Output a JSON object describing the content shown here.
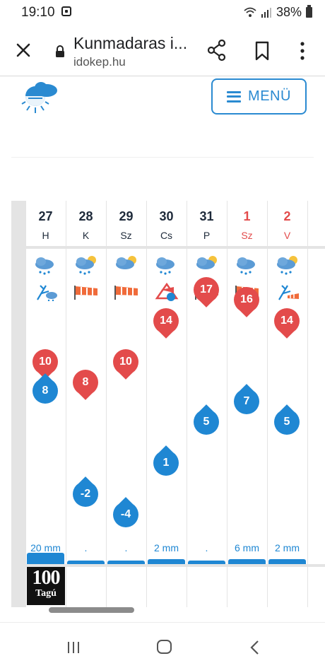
{
  "status_bar": {
    "time": "19:10",
    "battery": "38%",
    "icons": [
      "notification-icon",
      "wifi-icon",
      "signal-icon",
      "battery-icon"
    ]
  },
  "browser": {
    "title": "Kunmadaras i...",
    "url": "idokep.hu",
    "icons": [
      "close-icon",
      "lock-icon",
      "share-icon",
      "bookmark-icon",
      "more-icon"
    ]
  },
  "header": {
    "menu_label": "MENÜ",
    "logo_icon": "weather-logo-icon"
  },
  "forecast": {
    "days": [
      {
        "date": "27",
        "day": "H",
        "weekend": false,
        "max": "10",
        "min": "8",
        "precip": "20 mm",
        "weather_icon": "cloud-rain-icon",
        "wind_icon": "branch-wind-icon"
      },
      {
        "date": "28",
        "day": "K",
        "weekend": false,
        "max": "8",
        "min": "-2",
        "precip": ".",
        "weather_icon": "partly-cloudy-rain-icon",
        "wind_icon": "windsock-icon"
      },
      {
        "date": "29",
        "day": "Sz",
        "weekend": false,
        "max": "10",
        "min": "-4",
        "precip": ".",
        "weather_icon": "partly-sunny-icon",
        "wind_icon": "windsock-icon"
      },
      {
        "date": "30",
        "day": "Cs",
        "weekend": false,
        "max": "14",
        "min": "1",
        "precip": "2 mm",
        "weather_icon": "cloud-rain-icon",
        "wind_icon": "strong-wind-warning-icon"
      },
      {
        "date": "31",
        "day": "P",
        "weekend": false,
        "max": "17",
        "min": "5",
        "precip": ".",
        "weather_icon": "partly-sunny-icon",
        "wind_icon": "windsock-icon"
      },
      {
        "date": "1",
        "day": "Sz",
        "weekend": true,
        "max": "16",
        "min": "7",
        "precip": "6 mm",
        "weather_icon": "cloud-rain-icon",
        "wind_icon": "windsock-icon"
      },
      {
        "date": "2",
        "day": "V",
        "weekend": true,
        "max": "14",
        "min": "5",
        "precip": "2 mm",
        "weather_icon": "partly-cloudy-rain-icon",
        "wind_icon": "branch-windsock-icon"
      }
    ],
    "badge_top": "100",
    "badge_bottom": "Tagú"
  },
  "colors": {
    "accent_blue": "#1f87d3",
    "max_red": "#e34b4b",
    "menu_blue": "#2a8ad1"
  },
  "chart_data": {
    "type": "line",
    "categories": [
      "27 H",
      "28 K",
      "29 Sz",
      "30 Cs",
      "31 P",
      "1 Sz",
      "2 V"
    ],
    "series": [
      {
        "values": [
          10,
          8,
          10,
          14,
          17,
          16,
          14
        ]
      },
      {
        "values": [
          8,
          -2,
          -4,
          1,
          5,
          7,
          5
        ]
      }
    ],
    "precipitation_mm": [
      20,
      0,
      0,
      2,
      0,
      6,
      2
    ],
    "ylim": [
      -4,
      17
    ]
  }
}
